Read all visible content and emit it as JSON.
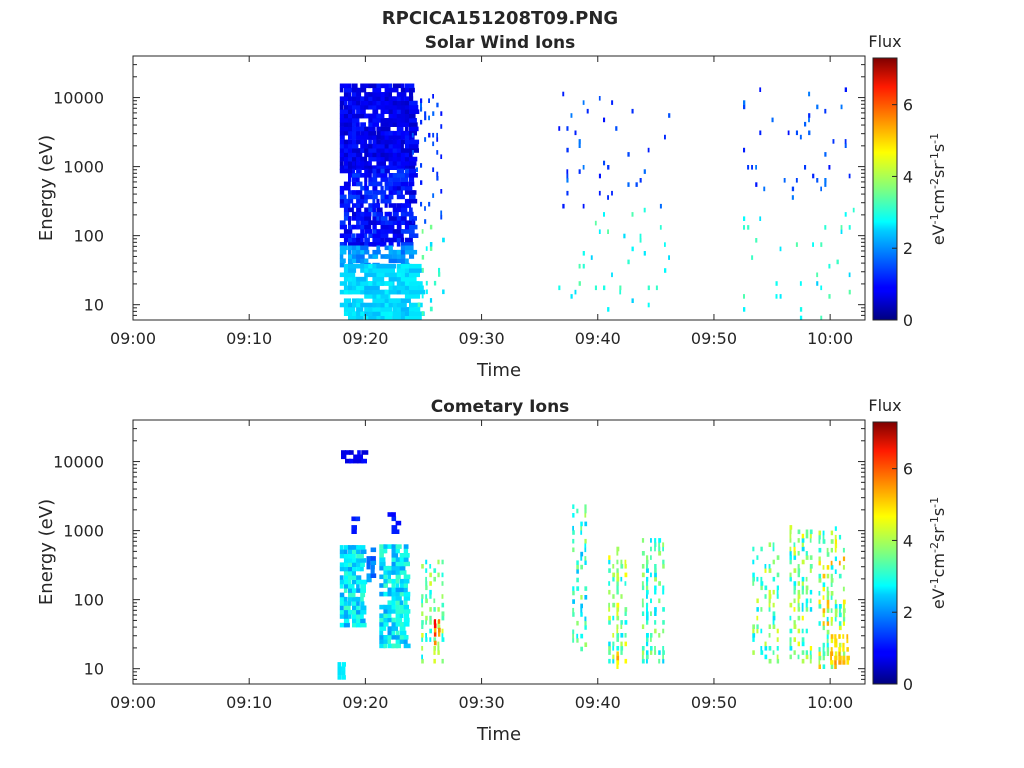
{
  "figure_title": "RPCICA151208T09.PNG",
  "chart_data": [
    {
      "type": "heatmap",
      "title": "Solar Wind Ions",
      "xlabel": "Time",
      "ylabel": "Energy (eV)",
      "x_ticks": [
        "09:00",
        "09:10",
        "09:20",
        "09:30",
        "09:40",
        "09:50",
        "10:00"
      ],
      "x_range_minutes": [
        0,
        63
      ],
      "y_scale": "log",
      "y_ticks": [
        10,
        100,
        1000,
        10000
      ],
      "y_tick_labels": [
        "10",
        "100",
        "1000",
        "10000"
      ],
      "ylim": [
        6,
        40000
      ],
      "colorbar": {
        "label": "Flux",
        "units": "eV-1cm-2sr-1s-1",
        "range": [
          0,
          7.3
        ],
        "ticks": [
          0,
          2,
          4,
          6
        ],
        "colormap": "jet"
      },
      "grid": false,
      "seed": 11,
      "groups": [
        {
          "t": [
            17.8,
            23.8
          ],
          "e": [
            900,
            14000
          ],
          "density": 0.9,
          "f": [
            0.5,
            1.1
          ],
          "w": [
            0.25,
            0.9
          ]
        },
        {
          "t": [
            17.8,
            23.8
          ],
          "e": [
            70,
            900
          ],
          "density": 0.7,
          "f": [
            0.6,
            1.4
          ],
          "w": [
            0.25,
            0.9
          ]
        },
        {
          "t": [
            17.8,
            23.8
          ],
          "e": [
            35,
            70
          ],
          "density": 0.6,
          "f": [
            1.6,
            2.3
          ],
          "w": [
            0.3,
            0.8
          ]
        },
        {
          "t": [
            17.8,
            23.8
          ],
          "e": [
            6,
            35
          ],
          "density": 0.7,
          "f": [
            2.2,
            2.7
          ],
          "w": [
            0.6,
            1.4
          ]
        },
        {
          "t": [
            24,
            26.8
          ],
          "e": [
            150,
            12000
          ],
          "density": 0.16,
          "f": [
            1.0,
            1.7
          ],
          "w": [
            0.15,
            0.2
          ]
        },
        {
          "t": [
            24.5,
            26.8
          ],
          "e": [
            7,
            150
          ],
          "density": 0.12,
          "f": [
            2.4,
            3.6
          ],
          "w": [
            0.15,
            0.25
          ]
        },
        {
          "t": [
            36.6,
            46.2
          ],
          "e": [
            250,
            12000
          ],
          "density": 0.05,
          "f": [
            1.0,
            1.8
          ],
          "w": [
            0.15,
            0.2
          ]
        },
        {
          "t": [
            36.6,
            46.2
          ],
          "e": [
            6,
            250
          ],
          "density": 0.05,
          "f": [
            2.4,
            3.4
          ],
          "w": [
            0.15,
            0.2
          ]
        },
        {
          "t": [
            52.5,
            62.2
          ],
          "e": [
            250,
            14000
          ],
          "density": 0.05,
          "f": [
            1.0,
            1.8
          ],
          "w": [
            0.15,
            0.2
          ]
        },
        {
          "t": [
            52.5,
            62.2
          ],
          "e": [
            6,
            250
          ],
          "density": 0.05,
          "f": [
            2.4,
            3.4
          ],
          "w": [
            0.15,
            0.2
          ]
        }
      ]
    },
    {
      "type": "heatmap",
      "title": "Cometary Ions",
      "xlabel": "Time",
      "ylabel": "Energy (eV)",
      "x_ticks": [
        "09:00",
        "09:10",
        "09:20",
        "09:30",
        "09:40",
        "09:50",
        "10:00"
      ],
      "x_range_minutes": [
        0,
        63
      ],
      "y_scale": "log",
      "y_ticks": [
        10,
        100,
        1000,
        10000
      ],
      "y_tick_labels": [
        "10",
        "100",
        "1000",
        "10000"
      ],
      "ylim": [
        6,
        40000
      ],
      "colorbar": {
        "label": "Flux",
        "units": "eV-1cm-2sr-1s-1",
        "range": [
          0,
          7.3
        ],
        "ticks": [
          0,
          2,
          4,
          6
        ],
        "colormap": "jet"
      },
      "grid": false,
      "seed": 23,
      "groups": [
        {
          "t": [
            17.6,
            18.2
          ],
          "e": [
            7,
            12
          ],
          "density": 1.0,
          "f": [
            2.5,
            2.7
          ],
          "w": [
            0.3,
            0.4
          ]
        },
        {
          "t": [
            17.9,
            19.7
          ],
          "e": [
            9500,
            14000
          ],
          "density": 0.6,
          "f": [
            0.6,
            1.0
          ],
          "w": [
            0.3,
            0.6
          ]
        },
        {
          "t": [
            18.8,
            19.5
          ],
          "e": [
            900,
            1600
          ],
          "density": 0.5,
          "f": [
            0.9,
            1.3
          ],
          "w": [
            0.3,
            0.6
          ]
        },
        {
          "t": [
            21.9,
            22.8
          ],
          "e": [
            900,
            1800
          ],
          "density": 0.5,
          "f": [
            0.9,
            1.3
          ],
          "w": [
            0.3,
            0.5
          ]
        },
        {
          "t": [
            17.8,
            19.7
          ],
          "e": [
            40,
            550
          ],
          "density": 0.85,
          "f": [
            2.0,
            3.2
          ],
          "w": [
            0.3,
            0.6
          ]
        },
        {
          "t": [
            20.1,
            20.7
          ],
          "e": [
            180,
            500
          ],
          "density": 0.6,
          "f": [
            1.4,
            2.3
          ],
          "w": [
            0.3,
            0.5
          ]
        },
        {
          "t": [
            21.2,
            23.6
          ],
          "e": [
            20,
            550
          ],
          "density": 0.8,
          "f": [
            2.0,
            3.2
          ],
          "w": [
            0.3,
            0.6
          ]
        },
        {
          "t": [
            24.8,
            26.6
          ],
          "e": [
            12,
            350
          ],
          "density": 0.5,
          "f": [
            2.6,
            4.4
          ],
          "w": [
            0.15,
            0.25
          ]
        },
        {
          "t": [
            25.9,
            26.5
          ],
          "e": [
            22,
            50
          ],
          "density": 0.6,
          "f": [
            5.0,
            6.5
          ],
          "w": [
            0.15,
            0.25
          ]
        },
        {
          "t": [
            37.8,
            39.0
          ],
          "e": [
            18,
            2200
          ],
          "density": 0.35,
          "f": [
            2.2,
            4.0
          ],
          "w": [
            0.15,
            0.25
          ]
        },
        {
          "t": [
            40.9,
            42.5
          ],
          "e": [
            12,
            550
          ],
          "density": 0.5,
          "f": [
            2.5,
            4.6
          ],
          "w": [
            0.15,
            0.25
          ]
        },
        {
          "t": [
            41.6,
            42.2
          ],
          "e": [
            10,
            16
          ],
          "density": 0.6,
          "f": [
            4.5,
            5.3
          ],
          "w": [
            0.15,
            0.25
          ]
        },
        {
          "t": [
            43.8,
            45.6
          ],
          "e": [
            12,
            700
          ],
          "density": 0.45,
          "f": [
            2.4,
            4.0
          ],
          "w": [
            0.15,
            0.25
          ]
        },
        {
          "t": [
            53.3,
            55.5
          ],
          "e": [
            12,
            600
          ],
          "density": 0.4,
          "f": [
            2.5,
            4.4
          ],
          "w": [
            0.15,
            0.25
          ]
        },
        {
          "t": [
            56.5,
            58.6
          ],
          "e": [
            12,
            1200
          ],
          "density": 0.4,
          "f": [
            2.5,
            4.6
          ],
          "w": [
            0.15,
            0.25
          ]
        },
        {
          "t": [
            59.0,
            61.3
          ],
          "e": [
            10,
            1100
          ],
          "density": 0.45,
          "f": [
            2.6,
            5.2
          ],
          "w": [
            0.15,
            0.25
          ]
        },
        {
          "t": [
            60.0,
            61.5
          ],
          "e": [
            10,
            30
          ],
          "density": 0.6,
          "f": [
            4.6,
            5.4
          ],
          "w": [
            0.15,
            0.3
          ]
        }
      ]
    }
  ]
}
